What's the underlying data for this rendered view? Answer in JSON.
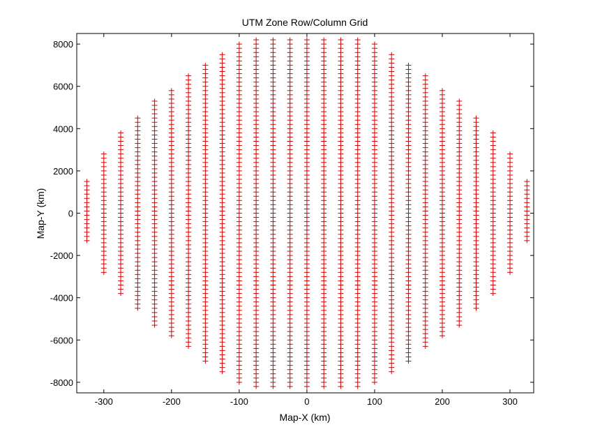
{
  "chart_data": {
    "type": "scatter",
    "title": "UTM Zone Row/Column Grid",
    "xlabel": "Map-X (km)",
    "ylabel": "Map-Y (km)",
    "xlim": [
      -340,
      335
    ],
    "ylim": [
      -8500,
      8500
    ],
    "xticks": [
      -300,
      -200,
      -100,
      0,
      100,
      200,
      300
    ],
    "yticks": [
      -8000,
      -6000,
      -4000,
      -2000,
      0,
      2000,
      4000,
      6000,
      8000
    ],
    "grid": false,
    "marker": "+",
    "marker_color": "#d40000",
    "column_spacing_km": 25,
    "row_spacing_km": 200,
    "columns": [
      {
        "x": -325,
        "ymin": -1300,
        "ymax": 1500
      },
      {
        "x": -300,
        "ymin": -2800,
        "ymax": 2800
      },
      {
        "x": -275,
        "ymin": -3800,
        "ymax": 3800
      },
      {
        "x": -250,
        "ymin": -4500,
        "ymax": 4500
      },
      {
        "x": -225,
        "ymin": -5300,
        "ymax": 5300
      },
      {
        "x": -200,
        "ymin": -5800,
        "ymax": 5800
      },
      {
        "x": -175,
        "ymin": -6300,
        "ymax": 6500
      },
      {
        "x": -150,
        "ymin": -7000,
        "ymax": 7000
      },
      {
        "x": -125,
        "ymin": -7500,
        "ymax": 7500
      },
      {
        "x": -100,
        "ymin": -8000,
        "ymax": 8000
      },
      {
        "x": -75,
        "ymin": -8200,
        "ymax": 8200
      },
      {
        "x": -50,
        "ymin": -8200,
        "ymax": 8200
      },
      {
        "x": -25,
        "ymin": -8200,
        "ymax": 8200
      },
      {
        "x": 0,
        "ymin": -8200,
        "ymax": 8200
      },
      {
        "x": 25,
        "ymin": -8200,
        "ymax": 8200
      },
      {
        "x": 50,
        "ymin": -8200,
        "ymax": 8200
      },
      {
        "x": 75,
        "ymin": -8200,
        "ymax": 8200
      },
      {
        "x": 100,
        "ymin": -8000,
        "ymax": 8000
      },
      {
        "x": 125,
        "ymin": -7500,
        "ymax": 7500
      },
      {
        "x": 150,
        "ymin": -7000,
        "ymax": 7000
      },
      {
        "x": 175,
        "ymin": -6300,
        "ymax": 6500
      },
      {
        "x": 200,
        "ymin": -5800,
        "ymax": 5800
      },
      {
        "x": 225,
        "ymin": -5300,
        "ymax": 5300
      },
      {
        "x": 250,
        "ymin": -4500,
        "ymax": 4500
      },
      {
        "x": 275,
        "ymin": -3800,
        "ymax": 3800
      },
      {
        "x": 300,
        "ymin": -2800,
        "ymax": 2800
      },
      {
        "x": 325,
        "ymin": -1300,
        "ymax": 1500
      }
    ]
  }
}
